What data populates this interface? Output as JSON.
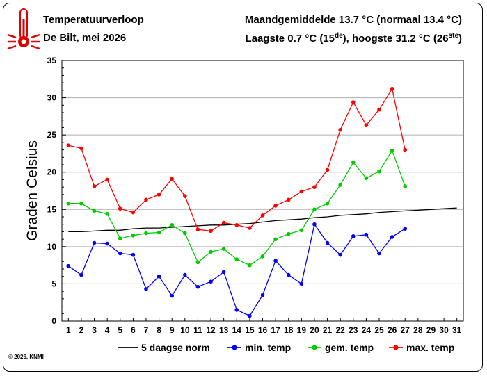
{
  "header": {
    "title": "Temperatuurverloop",
    "location": "De Bilt, mei 2026",
    "summary_line1": "Maandgemiddelde 13.7 °C (normaal 13.4 °C)",
    "summary_line2_pre": "Laagste 0.7 °C (15",
    "summary_line2_sup1": "de",
    "summary_line2_mid": "), hoogste 31.2 °C (26",
    "summary_line2_sup2": "ste",
    "summary_line2_post": ")"
  },
  "copyright": "© 2026, KNMI",
  "thermometer_icon": "thermometer-icon",
  "chart_data": {
    "type": "line",
    "ylabel": "Graden Celsius",
    "xlabel": "",
    "xlim": [
      1,
      31
    ],
    "ylim": [
      0,
      35
    ],
    "x_ticks": [
      1,
      2,
      3,
      4,
      5,
      6,
      7,
      8,
      9,
      10,
      11,
      12,
      13,
      14,
      15,
      16,
      17,
      18,
      19,
      20,
      21,
      22,
      23,
      24,
      25,
      26,
      27,
      28,
      29,
      30,
      31
    ],
    "y_ticks": [
      0,
      5,
      10,
      15,
      20,
      25,
      30,
      35
    ],
    "grid": true,
    "legend_position": "bottom",
    "series": [
      {
        "name": "5 daagse norm",
        "color": "#000000",
        "markers": false,
        "x": [
          1,
          2,
          3,
          4,
          5,
          6,
          7,
          8,
          9,
          10,
          11,
          12,
          13,
          14,
          15,
          16,
          17,
          18,
          19,
          20,
          21,
          22,
          23,
          24,
          25,
          26,
          27,
          28,
          29,
          30,
          31
        ],
        "values": [
          12.0,
          12.0,
          12.1,
          12.2,
          12.2,
          12.4,
          12.5,
          12.5,
          12.6,
          12.7,
          12.8,
          12.9,
          12.9,
          13.0,
          13.1,
          13.3,
          13.5,
          13.6,
          13.7,
          13.9,
          14.0,
          14.2,
          14.3,
          14.4,
          14.6,
          14.7,
          14.8,
          14.9,
          15.0,
          15.1,
          15.2
        ]
      },
      {
        "name": "min. temp",
        "color": "#0000ff",
        "markers": true,
        "x": [
          1,
          2,
          3,
          4,
          5,
          6,
          7,
          8,
          9,
          10,
          11,
          12,
          13,
          14,
          15,
          16,
          17,
          18,
          19,
          20,
          21,
          22,
          23,
          24,
          25,
          26,
          27
        ],
        "values": [
          7.4,
          6.2,
          10.5,
          10.4,
          9.1,
          8.9,
          4.3,
          6.0,
          3.4,
          6.2,
          4.6,
          5.3,
          6.6,
          1.5,
          0.7,
          3.5,
          8.1,
          6.2,
          5.0,
          13.0,
          10.5,
          8.9,
          11.4,
          11.6,
          9.1,
          11.3,
          12.4
        ]
      },
      {
        "name": "gem. temp",
        "color": "#00cc00",
        "markers": true,
        "x": [
          1,
          2,
          3,
          4,
          5,
          6,
          7,
          8,
          9,
          10,
          11,
          12,
          13,
          14,
          15,
          16,
          17,
          18,
          19,
          20,
          21,
          22,
          23,
          24,
          25,
          26,
          27
        ],
        "values": [
          15.8,
          15.8,
          14.8,
          14.4,
          11.1,
          11.5,
          11.8,
          11.9,
          12.9,
          11.8,
          7.9,
          9.3,
          9.7,
          8.3,
          7.5,
          8.7,
          11.0,
          11.7,
          12.2,
          15.0,
          15.8,
          18.3,
          21.3,
          19.2,
          20.1,
          22.9,
          18.1
        ]
      },
      {
        "name": "max. temp",
        "color": "#ff0000",
        "markers": true,
        "x": [
          1,
          2,
          3,
          4,
          5,
          6,
          7,
          8,
          9,
          10,
          11,
          12,
          13,
          14,
          15,
          16,
          17,
          18,
          19,
          20,
          21,
          22,
          23,
          24,
          25,
          26,
          27
        ],
        "values": [
          23.6,
          23.2,
          18.1,
          19.0,
          15.1,
          14.6,
          16.3,
          17.0,
          19.1,
          16.8,
          12.3,
          12.1,
          13.2,
          12.9,
          12.5,
          14.2,
          15.5,
          16.3,
          17.4,
          18.0,
          20.3,
          25.7,
          29.4,
          26.3,
          28.4,
          31.2,
          23.0
        ]
      }
    ]
  }
}
